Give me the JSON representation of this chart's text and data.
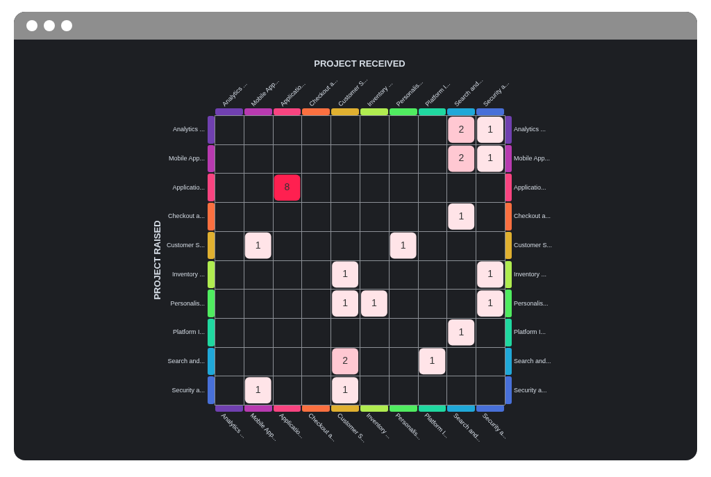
{
  "chart_data": {
    "type": "heatmap",
    "title": "PROJECT RECEIVED",
    "ylabel": "PROJECT RAISED",
    "categories": [
      "Analytics ...",
      "Mobile App...",
      "Applicatio...",
      "Checkout a...",
      "Customer S...",
      "Inventory ...",
      "Personalis...",
      "Platform I...",
      "Search and...",
      "Security a..."
    ],
    "y_categories": [
      "Analytics ...",
      "Mobile App...",
      "Applicatio...",
      "Checkout a...",
      "Customer S...",
      "Inventory ...",
      "Personalis...",
      "Platform I...",
      "Search and...",
      "Security a..."
    ],
    "y2_categories": [
      "Analytics ...",
      "Mobile App...",
      "Applicatio...",
      "Checkout a...",
      "Customer S...",
      "Inventory ...",
      "Personalis...",
      "Platform I...",
      "Search and...",
      "Security a..."
    ],
    "colors": [
      "#7040b0",
      "#b83ab0",
      "#f84480",
      "#fb7040",
      "#e0b030",
      "#b0ec50",
      "#50ec60",
      "#20d8a0",
      "#20a8d8",
      "#4870d8"
    ],
    "cells": [
      [
        null,
        null,
        null,
        null,
        null,
        null,
        null,
        null,
        2,
        1
      ],
      [
        null,
        null,
        null,
        null,
        null,
        null,
        null,
        null,
        2,
        1
      ],
      [
        null,
        null,
        8,
        null,
        null,
        null,
        null,
        null,
        null,
        null
      ],
      [
        null,
        null,
        null,
        null,
        null,
        null,
        null,
        null,
        1,
        null
      ],
      [
        null,
        1,
        null,
        null,
        null,
        null,
        1,
        null,
        null,
        null
      ],
      [
        null,
        null,
        null,
        null,
        1,
        null,
        null,
        null,
        null,
        1
      ],
      [
        null,
        null,
        null,
        null,
        1,
        1,
        null,
        null,
        null,
        1
      ],
      [
        null,
        null,
        null,
        null,
        null,
        null,
        null,
        null,
        1,
        null
      ],
      [
        null,
        null,
        null,
        null,
        2,
        null,
        null,
        1,
        null,
        null
      ],
      [
        null,
        1,
        null,
        null,
        1,
        null,
        null,
        null,
        null,
        null
      ]
    ],
    "grid": true,
    "data_labels": true
  }
}
